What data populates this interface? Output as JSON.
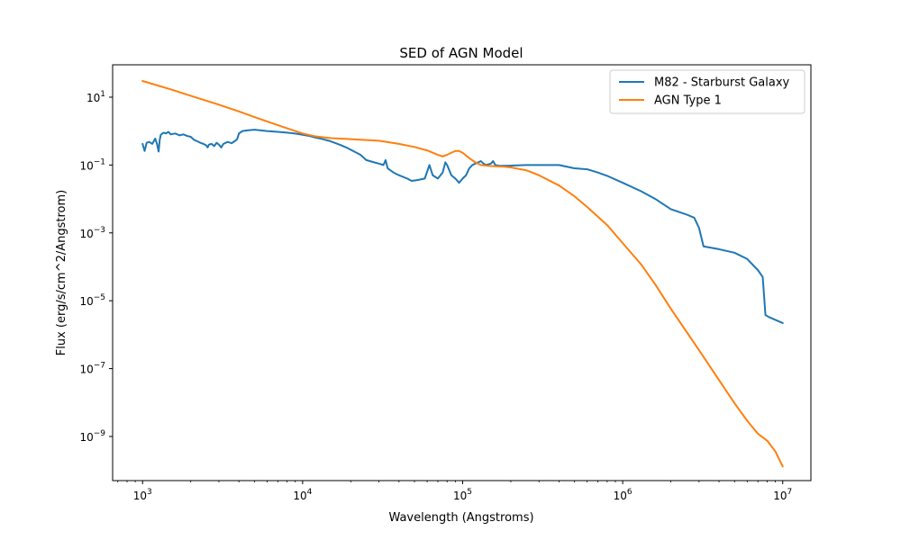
{
  "chart_data": {
    "type": "line",
    "title": "SED of AGN Model",
    "xlabel": "Wavelength (Angstroms)",
    "ylabel": "Flux (erg/s/cm^2/Angstrom)",
    "xscale": "log",
    "yscale": "log",
    "xlim": [
      650,
      15000000
    ],
    "ylim": [
      5e-11,
      90
    ],
    "grid": false,
    "legend_position": "top-right",
    "x_ticks": [
      {
        "value": 1000,
        "base": "10",
        "exp": "3"
      },
      {
        "value": 10000,
        "base": "10",
        "exp": "4"
      },
      {
        "value": 100000,
        "base": "10",
        "exp": "5"
      },
      {
        "value": 1000000,
        "base": "10",
        "exp": "6"
      },
      {
        "value": 10000000,
        "base": "10",
        "exp": "7"
      }
    ],
    "y_ticks": [
      {
        "value": 1e-09,
        "base": "10",
        "exp": "−9"
      },
      {
        "value": 1e-07,
        "base": "10",
        "exp": "−7"
      },
      {
        "value": 1e-05,
        "base": "10",
        "exp": "−5"
      },
      {
        "value": 0.001,
        "base": "10",
        "exp": "−3"
      },
      {
        "value": 0.1,
        "base": "10",
        "exp": "−1"
      },
      {
        "value": 10,
        "base": "10",
        "exp": "1"
      }
    ],
    "series": [
      {
        "name": "M82 - Starburst Galaxy",
        "color": "#1f77b4",
        "points": [
          [
            1000,
            0.42
          ],
          [
            1030,
            0.26
          ],
          [
            1060,
            0.45
          ],
          [
            1100,
            0.48
          ],
          [
            1150,
            0.42
          ],
          [
            1200,
            0.6
          ],
          [
            1230,
            0.42
          ],
          [
            1260,
            0.25
          ],
          [
            1280,
            0.55
          ],
          [
            1300,
            0.78
          ],
          [
            1350,
            0.9
          ],
          [
            1400,
            0.85
          ],
          [
            1450,
            0.95
          ],
          [
            1500,
            0.8
          ],
          [
            1600,
            0.85
          ],
          [
            1700,
            0.75
          ],
          [
            1800,
            0.8
          ],
          [
            1900,
            0.72
          ],
          [
            2000,
            0.68
          ],
          [
            2100,
            0.55
          ],
          [
            2200,
            0.5
          ],
          [
            2300,
            0.45
          ],
          [
            2400,
            0.42
          ],
          [
            2500,
            0.38
          ],
          [
            2550,
            0.33
          ],
          [
            2600,
            0.4
          ],
          [
            2700,
            0.42
          ],
          [
            2800,
            0.36
          ],
          [
            2900,
            0.45
          ],
          [
            3000,
            0.4
          ],
          [
            3100,
            0.33
          ],
          [
            3200,
            0.42
          ],
          [
            3400,
            0.48
          ],
          [
            3600,
            0.44
          ],
          [
            3800,
            0.52
          ],
          [
            3900,
            0.58
          ],
          [
            4000,
            0.85
          ],
          [
            4200,
            1.0
          ],
          [
            4500,
            1.05
          ],
          [
            5000,
            1.1
          ],
          [
            5500,
            1.05
          ],
          [
            6000,
            1.0
          ],
          [
            7000,
            0.95
          ],
          [
            8000,
            0.9
          ],
          [
            9000,
            0.85
          ],
          [
            10000,
            0.78
          ],
          [
            11000,
            0.72
          ],
          [
            12000,
            0.65
          ],
          [
            13000,
            0.6
          ],
          [
            15000,
            0.5
          ],
          [
            17000,
            0.4
          ],
          [
            19000,
            0.32
          ],
          [
            21000,
            0.25
          ],
          [
            23000,
            0.2
          ],
          [
            25000,
            0.14
          ],
          [
            28000,
            0.12
          ],
          [
            30000,
            0.11
          ],
          [
            32000,
            0.1
          ],
          [
            33000,
            0.14
          ],
          [
            34000,
            0.08
          ],
          [
            37000,
            0.06
          ],
          [
            40000,
            0.05
          ],
          [
            45000,
            0.04
          ],
          [
            48000,
            0.034
          ],
          [
            52000,
            0.036
          ],
          [
            58000,
            0.04
          ],
          [
            62000,
            0.1
          ],
          [
            65000,
            0.05
          ],
          [
            70000,
            0.04
          ],
          [
            75000,
            0.06
          ],
          [
            78000,
            0.12
          ],
          [
            80000,
            0.1
          ],
          [
            85000,
            0.05
          ],
          [
            90000,
            0.04
          ],
          [
            95000,
            0.03
          ],
          [
            100000,
            0.04
          ],
          [
            105000,
            0.05
          ],
          [
            110000,
            0.08
          ],
          [
            115000,
            0.1
          ],
          [
            120000,
            0.11
          ],
          [
            125000,
            0.12
          ],
          [
            130000,
            0.13
          ],
          [
            135000,
            0.11
          ],
          [
            140000,
            0.1
          ],
          [
            150000,
            0.11
          ],
          [
            155000,
            0.13
          ],
          [
            160000,
            0.1
          ],
          [
            170000,
            0.095
          ],
          [
            200000,
            0.096
          ],
          [
            250000,
            0.1
          ],
          [
            300000,
            0.1
          ],
          [
            350000,
            0.1
          ],
          [
            400000,
            0.1
          ],
          [
            500000,
            0.08
          ],
          [
            600000,
            0.075
          ],
          [
            700000,
            0.06
          ],
          [
            800000,
            0.048
          ],
          [
            1000000,
            0.03
          ],
          [
            1300000,
            0.017
          ],
          [
            1600000,
            0.01
          ],
          [
            2000000,
            0.005
          ],
          [
            2500000,
            0.0035
          ],
          [
            2800000,
            0.0028
          ],
          [
            3000000,
            0.0014
          ],
          [
            3200000,
            0.0004
          ],
          [
            3500000,
            0.00037
          ],
          [
            4000000,
            0.00033
          ],
          [
            5000000,
            0.00026
          ],
          [
            6000000,
            0.00017
          ],
          [
            7000000,
            8e-05
          ],
          [
            7500000,
            5e-05
          ],
          [
            7800000,
            3.8e-06
          ],
          [
            8200000,
            3.3e-06
          ],
          [
            10000000,
            2.2e-06
          ]
        ]
      },
      {
        "name": "AGN Type 1",
        "color": "#ff7f0e",
        "points": [
          [
            1000,
            30
          ],
          [
            1500,
            17
          ],
          [
            2000,
            11
          ],
          [
            3000,
            6
          ],
          [
            4000,
            3.8
          ],
          [
            5000,
            2.6
          ],
          [
            7000,
            1.5
          ],
          [
            10000,
            0.85
          ],
          [
            12000,
            0.7
          ],
          [
            15000,
            0.62
          ],
          [
            20000,
            0.58
          ],
          [
            30000,
            0.52
          ],
          [
            40000,
            0.42
          ],
          [
            50000,
            0.34
          ],
          [
            60000,
            0.27
          ],
          [
            70000,
            0.2
          ],
          [
            75000,
            0.18
          ],
          [
            80000,
            0.2
          ],
          [
            85000,
            0.23
          ],
          [
            90000,
            0.26
          ],
          [
            95000,
            0.26
          ],
          [
            100000,
            0.23
          ],
          [
            110000,
            0.16
          ],
          [
            120000,
            0.12
          ],
          [
            130000,
            0.1
          ],
          [
            150000,
            0.093
          ],
          [
            180000,
            0.09
          ],
          [
            200000,
            0.085
          ],
          [
            250000,
            0.07
          ],
          [
            300000,
            0.05
          ],
          [
            400000,
            0.025
          ],
          [
            500000,
            0.012
          ],
          [
            600000,
            0.0058
          ],
          [
            800000,
            0.0017
          ],
          [
            1000000,
            0.0005
          ],
          [
            1300000,
            0.00012
          ],
          [
            1600000,
            3e-05
          ],
          [
            2000000,
            5.8e-06
          ],
          [
            3000000,
            3.5e-07
          ],
          [
            4000000,
            4.6e-08
          ],
          [
            5000000,
            9.5e-09
          ],
          [
            6000000,
            2.9e-09
          ],
          [
            7000000,
            1.2e-09
          ],
          [
            8000000,
            7.5e-10
          ],
          [
            9000000,
            3.6e-10
          ],
          [
            10000000,
            1.3e-10
          ]
        ]
      }
    ]
  }
}
